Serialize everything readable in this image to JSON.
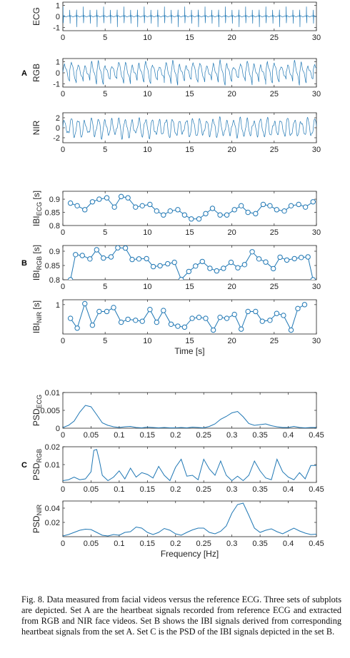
{
  "chart_data": [
    {
      "id": "A1",
      "type": "line",
      "set_label": "",
      "ylabel": "ECG",
      "ylabel_sub": "",
      "ylabel_suffix": "",
      "xlim": [
        0,
        30
      ],
      "ylim": [
        -1.3,
        1.3
      ],
      "xticks": [
        0,
        5,
        10,
        15,
        20,
        25,
        30
      ],
      "yticks": [
        1,
        0,
        -1
      ],
      "ytick_labels": [
        "1",
        "0",
        "-1"
      ],
      "signal": {
        "kind": "ecg",
        "period": 0.8,
        "amp": [
          1.0,
          -1.05
        ],
        "baseline": 0
      }
    },
    {
      "id": "A2",
      "type": "line",
      "set_label": "A",
      "ylabel": "RGB",
      "ylabel_sub": "",
      "ylabel_suffix": "",
      "xlim": [
        0,
        30
      ],
      "ylim": [
        -1.3,
        1.3
      ],
      "xticks": [
        0,
        5,
        10,
        15,
        20,
        25,
        30
      ],
      "yticks": [
        1,
        0,
        -1
      ],
      "ytick_labels": [
        "1",
        "0",
        "-1"
      ],
      "signal": {
        "kind": "sawtooth",
        "period": 0.8,
        "amp": 1.0
      }
    },
    {
      "id": "A3",
      "type": "line",
      "set_label": "",
      "ylabel": "NIR",
      "ylabel_sub": "",
      "ylabel_suffix": "",
      "xlim": [
        0,
        30
      ],
      "ylim": [
        -3,
        3
      ],
      "xticks": [
        0,
        5,
        10,
        15,
        20,
        25,
        30
      ],
      "yticks": [
        2,
        0,
        -2
      ],
      "ytick_labels": [
        "2",
        "0",
        "-2"
      ],
      "signal": {
        "kind": "noisy",
        "period": 0.8,
        "amp": 1.8
      }
    },
    {
      "id": "B1",
      "type": "line",
      "markers": true,
      "set_label": "",
      "ylabel": "IBI",
      "ylabel_sub": "ECG",
      "ylabel_suffix": "[s]",
      "xlim": [
        0,
        30
      ],
      "ylim": [
        0.8,
        0.93
      ],
      "xticks": [
        0,
        5,
        10,
        15,
        20,
        25,
        30
      ],
      "yticks": [
        0.9,
        0.85,
        0.8
      ],
      "ytick_labels": [
        "0.9",
        "0.85",
        "0.8"
      ],
      "x": [
        0.9,
        1.7,
        2.6,
        3.5,
        4.3,
        5.2,
        6.1,
        6.9,
        7.7,
        8.6,
        9.4,
        10.3,
        11.1,
        11.9,
        12.7,
        13.6,
        14.4,
        15.2,
        16.1,
        16.9,
        17.7,
        18.6,
        19.4,
        20.3,
        21.1,
        21.9,
        22.8,
        23.7,
        24.5,
        25.3,
        26.2,
        27.0,
        27.9,
        28.7,
        29.6
      ],
      "y": [
        0.885,
        0.875,
        0.86,
        0.89,
        0.9,
        0.905,
        0.87,
        0.91,
        0.905,
        0.87,
        0.875,
        0.88,
        0.855,
        0.84,
        0.855,
        0.86,
        0.84,
        0.825,
        0.825,
        0.845,
        0.865,
        0.84,
        0.84,
        0.86,
        0.875,
        0.85,
        0.845,
        0.88,
        0.875,
        0.86,
        0.855,
        0.875,
        0.88,
        0.87,
        0.89
      ]
    },
    {
      "id": "B2",
      "type": "line",
      "markers": true,
      "set_label": "B",
      "ylabel": "IBI",
      "ylabel_sub": "RGB",
      "ylabel_suffix": "[s]",
      "xlim": [
        0,
        30
      ],
      "ylim": [
        0.8,
        0.92
      ],
      "xticks": [
        0,
        5,
        10,
        15,
        20,
        25,
        30
      ],
      "yticks": [
        0.9,
        0.85,
        0.8
      ],
      "ytick_labels": [
        "0.9",
        "0.85",
        "0.8"
      ],
      "x": [
        0.9,
        1.5,
        2.3,
        3.2,
        4.0,
        4.8,
        5.7,
        6.5,
        7.4,
        8.2,
        9.0,
        9.9,
        10.7,
        11.5,
        12.4,
        13.2,
        14.0,
        14.9,
        15.7,
        16.5,
        17.4,
        18.2,
        19.0,
        19.9,
        20.7,
        21.5,
        22.4,
        23.2,
        24.0,
        24.9,
        25.7,
        26.5,
        27.4,
        28.2,
        29.0,
        29.6
      ],
      "y": [
        0.8,
        0.888,
        0.885,
        0.873,
        0.905,
        0.876,
        0.88,
        0.912,
        0.911,
        0.871,
        0.873,
        0.874,
        0.846,
        0.849,
        0.856,
        0.861,
        0.801,
        0.829,
        0.848,
        0.864,
        0.84,
        0.831,
        0.84,
        0.861,
        0.842,
        0.853,
        0.898,
        0.873,
        0.862,
        0.839,
        0.879,
        0.869,
        0.874,
        0.878,
        0.88,
        0.8
      ]
    },
    {
      "id": "B3",
      "type": "line",
      "markers": true,
      "set_label": "",
      "ylabel": "IBI",
      "ylabel_sub": "NIR",
      "ylabel_suffix": "[s]",
      "xlim": [
        0,
        30
      ],
      "ylim": [
        0.7,
        1.05
      ],
      "xticks": [
        0,
        5,
        10,
        15,
        20,
        25,
        30
      ],
      "xtick_labels_shown": true,
      "yticks": [
        1
      ],
      "ytick_labels": [
        "1"
      ],
      "xlabel": "Time [s]",
      "x": [
        0.9,
        1.7,
        2.6,
        3.5,
        4.3,
        5.2,
        6.0,
        6.9,
        7.7,
        8.6,
        9.4,
        10.3,
        11.1,
        11.9,
        12.8,
        13.6,
        14.4,
        15.3,
        16.1,
        16.9,
        17.8,
        18.6,
        19.4,
        20.3,
        21.1,
        21.9,
        22.8,
        23.6,
        24.5,
        25.3,
        26.1,
        27.0,
        27.8,
        28.6
      ],
      "y": [
        0.86,
        0.76,
        1.01,
        0.79,
        0.93,
        0.93,
        0.97,
        0.82,
        0.85,
        0.84,
        0.83,
        0.95,
        0.82,
        0.94,
        0.8,
        0.78,
        0.77,
        0.86,
        0.87,
        0.86,
        0.74,
        0.87,
        0.86,
        0.9,
        0.75,
        0.93,
        0.93,
        0.83,
        0.84,
        0.91,
        0.89,
        0.74,
        0.96,
        1.0
      ]
    },
    {
      "id": "C1",
      "type": "line",
      "set_label": "",
      "ylabel": "PSD",
      "ylabel_sub": "ECG",
      "ylabel_suffix": "",
      "xlim": [
        0,
        0.45
      ],
      "ylim": [
        0,
        0.01
      ],
      "xticks": [
        0,
        0.05,
        0.1,
        0.15,
        0.2,
        0.25,
        0.3,
        0.35,
        0.4,
        0.45
      ],
      "yticks": [
        0.01,
        0.005,
        0
      ],
      "ytick_labels": [
        "0.01",
        "0.005",
        "0"
      ],
      "x": [
        0,
        0.01,
        0.02,
        0.03,
        0.04,
        0.05,
        0.06,
        0.07,
        0.08,
        0.09,
        0.1,
        0.11,
        0.12,
        0.13,
        0.14,
        0.15,
        0.16,
        0.17,
        0.18,
        0.19,
        0.2,
        0.21,
        0.22,
        0.23,
        0.24,
        0.25,
        0.26,
        0.27,
        0.28,
        0.29,
        0.3,
        0.31,
        0.32,
        0.33,
        0.34,
        0.35,
        0.36,
        0.37,
        0.38,
        0.39,
        0.4,
        0.41,
        0.42,
        0.43,
        0.44,
        0.45
      ],
      "y": [
        0.0002,
        0.0008,
        0.002,
        0.0045,
        0.0064,
        0.006,
        0.0038,
        0.0015,
        0.0008,
        0.0004,
        0.0002,
        0.0004,
        0.0005,
        0.0002,
        0.0001,
        0.0003,
        0.0002,
        0.0001,
        0.0002,
        0.0001,
        0.0001,
        0.0002,
        0.0001,
        0.0003,
        0.0002,
        0.0001,
        0.0005,
        0.0012,
        0.0025,
        0.0033,
        0.0043,
        0.0047,
        0.0032,
        0.0013,
        0.0008,
        0.001,
        0.0012,
        0.0007,
        0.0004,
        0.0002,
        0.0002,
        0.0005,
        0.0002,
        0.0001,
        0.0002,
        0.0002
      ]
    },
    {
      "id": "C2",
      "type": "line",
      "set_label": "C",
      "ylabel": "PSD",
      "ylabel_sub": "RGB",
      "ylabel_suffix": "",
      "xlim": [
        0,
        0.45
      ],
      "ylim": [
        0,
        0.02
      ],
      "xticks": [
        0,
        0.05,
        0.1,
        0.15,
        0.2,
        0.25,
        0.3,
        0.35,
        0.4,
        0.45
      ],
      "yticks": [
        0.02,
        0.01
      ],
      "ytick_labels": [
        "0.02",
        "0.01"
      ],
      "x": [
        0,
        0.01,
        0.02,
        0.03,
        0.04,
        0.05,
        0.055,
        0.06,
        0.065,
        0.07,
        0.08,
        0.09,
        0.1,
        0.11,
        0.12,
        0.13,
        0.14,
        0.15,
        0.16,
        0.17,
        0.18,
        0.19,
        0.2,
        0.21,
        0.22,
        0.23,
        0.24,
        0.25,
        0.26,
        0.27,
        0.28,
        0.29,
        0.3,
        0.31,
        0.32,
        0.33,
        0.34,
        0.35,
        0.36,
        0.37,
        0.38,
        0.39,
        0.4,
        0.41,
        0.42,
        0.43,
        0.44,
        0.45
      ],
      "y": [
        0.001,
        0.0015,
        0.003,
        0.0015,
        0.002,
        0.006,
        0.018,
        0.0185,
        0.012,
        0.004,
        0.001,
        0.003,
        0.0065,
        0.002,
        0.008,
        0.003,
        0.0055,
        0.0045,
        0.0025,
        0.009,
        0.004,
        0.001,
        0.0085,
        0.013,
        0.0035,
        0.004,
        0.0015,
        0.013,
        0.0075,
        0.004,
        0.012,
        0.004,
        0.001,
        0.0035,
        0.001,
        0.004,
        0.012,
        0.0065,
        0.0025,
        0.0015,
        0.013,
        0.006,
        0.003,
        0.0015,
        0.0055,
        0.002,
        0.0095,
        0.0095
      ]
    },
    {
      "id": "C3",
      "type": "line",
      "set_label": "",
      "ylabel": "PSD",
      "ylabel_sub": "NIR",
      "ylabel_suffix": "",
      "xlim": [
        0,
        0.45
      ],
      "ylim": [
        0,
        0.05
      ],
      "xticks": [
        0,
        0.05,
        0.1,
        0.15,
        0.2,
        0.25,
        0.3,
        0.35,
        0.4,
        0.45
      ],
      "yticks": [
        0.04,
        0.02
      ],
      "ytick_labels": [
        "0.04",
        "0.02"
      ],
      "xlabel": "Frequency [Hz]",
      "x": [
        0,
        0.01,
        0.02,
        0.03,
        0.04,
        0.05,
        0.06,
        0.07,
        0.08,
        0.09,
        0.1,
        0.11,
        0.12,
        0.13,
        0.14,
        0.15,
        0.16,
        0.17,
        0.18,
        0.19,
        0.2,
        0.21,
        0.22,
        0.23,
        0.24,
        0.25,
        0.26,
        0.27,
        0.28,
        0.29,
        0.3,
        0.31,
        0.32,
        0.33,
        0.34,
        0.35,
        0.36,
        0.37,
        0.38,
        0.39,
        0.4,
        0.41,
        0.42,
        0.43,
        0.44,
        0.45
      ],
      "y": [
        0.001,
        0.003,
        0.006,
        0.009,
        0.0105,
        0.01,
        0.006,
        0.002,
        0.001,
        0.003,
        0.002,
        0.006,
        0.007,
        0.0135,
        0.012,
        0.006,
        0.003,
        0.006,
        0.0115,
        0.009,
        0.004,
        0.002,
        0.006,
        0.0095,
        0.012,
        0.012,
        0.006,
        0.004,
        0.0075,
        0.015,
        0.033,
        0.045,
        0.047,
        0.03,
        0.012,
        0.006,
        0.009,
        0.011,
        0.007,
        0.004,
        0.008,
        0.012,
        0.008,
        0.005,
        0.003,
        0.0035
      ]
    }
  ],
  "caption": "Fig. 8.  Data measured from facial videos versus the reference ECG. Three sets of subplots are depicted. Set A are the heartbeat signals recorded from reference ECG and extracted from RGB and NIR face videos. Set B shows the IBI signals derived from corresponding heartbeat signals from the set A. Set C is the PSD of the IBI signals depicted in the set B."
}
